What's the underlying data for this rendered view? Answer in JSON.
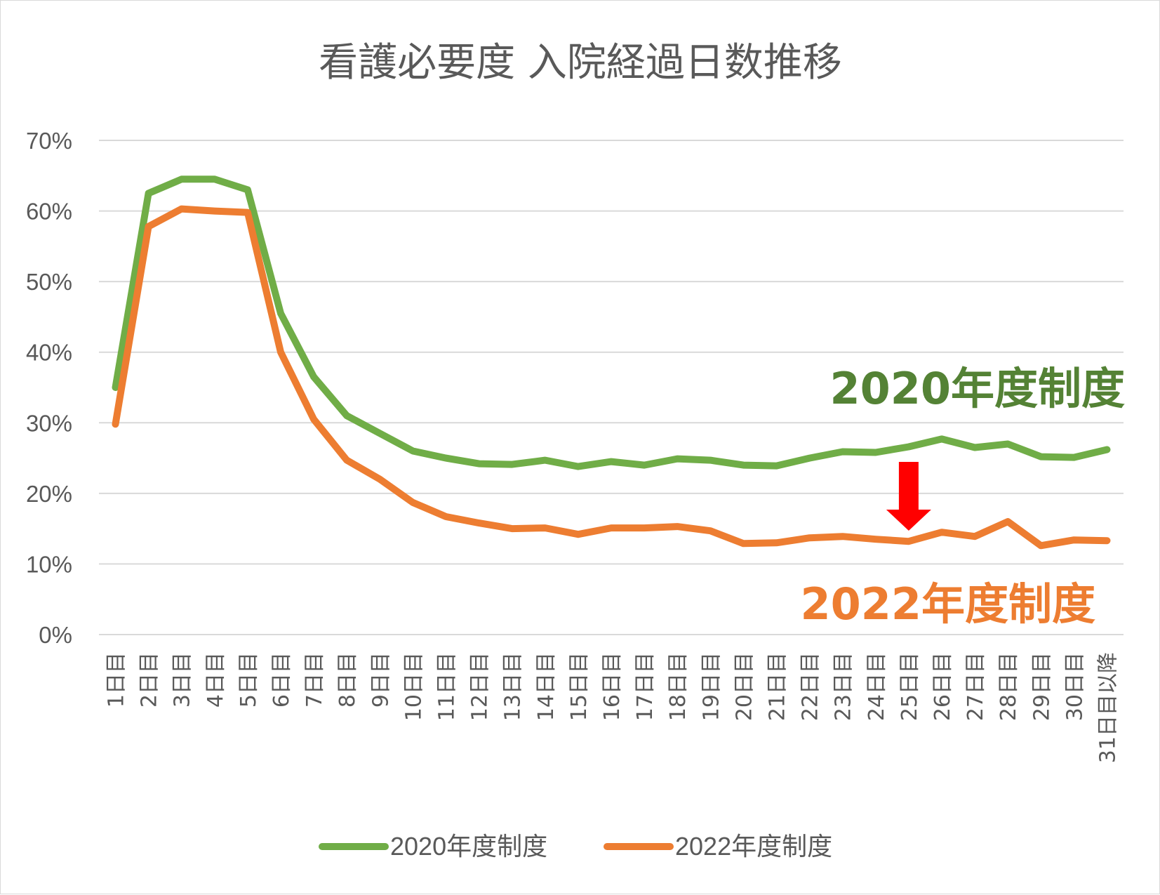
{
  "chart_data": {
    "type": "line",
    "title": "看護必要度 入院経過日数推移",
    "categories": [
      "1日目",
      "2日目",
      "3日目",
      "4日目",
      "5日目",
      "6日目",
      "7日目",
      "8日目",
      "9日目",
      "10日目",
      "11日目",
      "12日目",
      "13日目",
      "14日目",
      "15日目",
      "16日目",
      "17日目",
      "18日目",
      "19日目",
      "20日目",
      "21日目",
      "22日目",
      "23日目",
      "24日目",
      "25日目",
      "26日目",
      "27日目",
      "28日目",
      "29日目",
      "30日目",
      "31日目以降"
    ],
    "series": [
      {
        "name": "2020年度制度",
        "color": "#70ad47",
        "values": [
          0.35,
          0.625,
          0.645,
          0.645,
          0.63,
          0.455,
          0.365,
          0.31,
          0.285,
          0.26,
          0.25,
          0.242,
          0.241,
          0.247,
          0.238,
          0.245,
          0.24,
          0.249,
          0.247,
          0.24,
          0.239,
          0.25,
          0.259,
          0.258,
          0.266,
          0.277,
          0.265,
          0.27,
          0.252,
          0.251,
          0.262
        ]
      },
      {
        "name": "2022年度制度",
        "color": "#ed7d31",
        "values": [
          0.298,
          0.578,
          0.603,
          0.6,
          0.598,
          0.4,
          0.305,
          0.247,
          0.22,
          0.187,
          0.167,
          0.158,
          0.15,
          0.151,
          0.142,
          0.151,
          0.151,
          0.153,
          0.147,
          0.129,
          0.13,
          0.137,
          0.139,
          0.135,
          0.132,
          0.145,
          0.139,
          0.16,
          0.126,
          0.134,
          0.133
        ]
      }
    ],
    "yticks": [
      "0%",
      "10%",
      "20%",
      "30%",
      "40%",
      "50%",
      "60%",
      "70%"
    ],
    "ylim": [
      0,
      0.7
    ],
    "grid": true,
    "legend_position": "bottom",
    "annotations": [
      {
        "text": "2020年度制度",
        "color": "#548235"
      },
      {
        "text": "2022年度制度",
        "color": "#ed7d31"
      }
    ],
    "arrow": {
      "color": "#ff0000",
      "direction": "down",
      "at_category": "25日目"
    }
  }
}
